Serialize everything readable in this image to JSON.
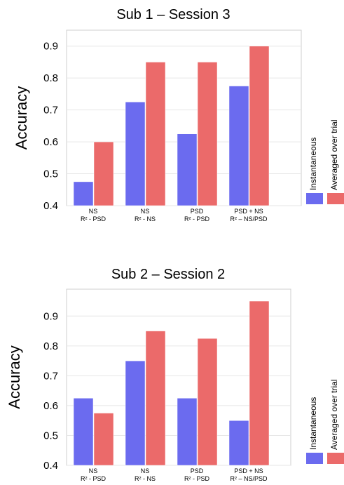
{
  "chart_data": [
    {
      "type": "bar",
      "title": "Sub 1 – Session 3",
      "ylabel": "Accuracy",
      "xlabel": "",
      "ylim": [
        0.4,
        0.95
      ],
      "yticks": [
        "0.4",
        "0.5",
        "0.6",
        "0.7",
        "0.8",
        "0.9"
      ],
      "categories": [
        [
          "NS",
          "R² - PSD"
        ],
        [
          "NS",
          "R² - NS"
        ],
        [
          "PSD",
          "R² - PSD"
        ],
        [
          "PSD + NS",
          "R² – NS/PSD"
        ]
      ],
      "series": [
        {
          "name": "Instantaneous",
          "color": "#6b6bef",
          "values": [
            0.475,
            0.725,
            0.625,
            0.775
          ]
        },
        {
          "name": "Averaged over trial",
          "color": "#eb6a6a",
          "values": [
            0.6,
            0.85,
            0.85,
            0.9
          ]
        }
      ],
      "grid": true,
      "legend": "right"
    },
    {
      "type": "bar",
      "title": "Sub 2 – Session 2",
      "ylabel": "Accuracy",
      "xlabel": "",
      "ylim": [
        0.4,
        0.99
      ],
      "yticks": [
        "0.4",
        "0.5",
        "0.6",
        "0.7",
        "0.8",
        "0.9"
      ],
      "categories": [
        [
          "NS",
          "R² - PSD"
        ],
        [
          "NS",
          "R² - NS"
        ],
        [
          "PSD",
          "R² - PSD"
        ],
        [
          "PSD + NS",
          "R² – NS/PSD"
        ]
      ],
      "series": [
        {
          "name": "Instantaneous",
          "color": "#6b6bef",
          "values": [
            0.625,
            0.75,
            0.625,
            0.55
          ]
        },
        {
          "name": "Averaged over trial",
          "color": "#eb6a6a",
          "values": [
            0.575,
            0.85,
            0.825,
            0.95
          ]
        }
      ],
      "grid": true,
      "legend": "right"
    }
  ]
}
